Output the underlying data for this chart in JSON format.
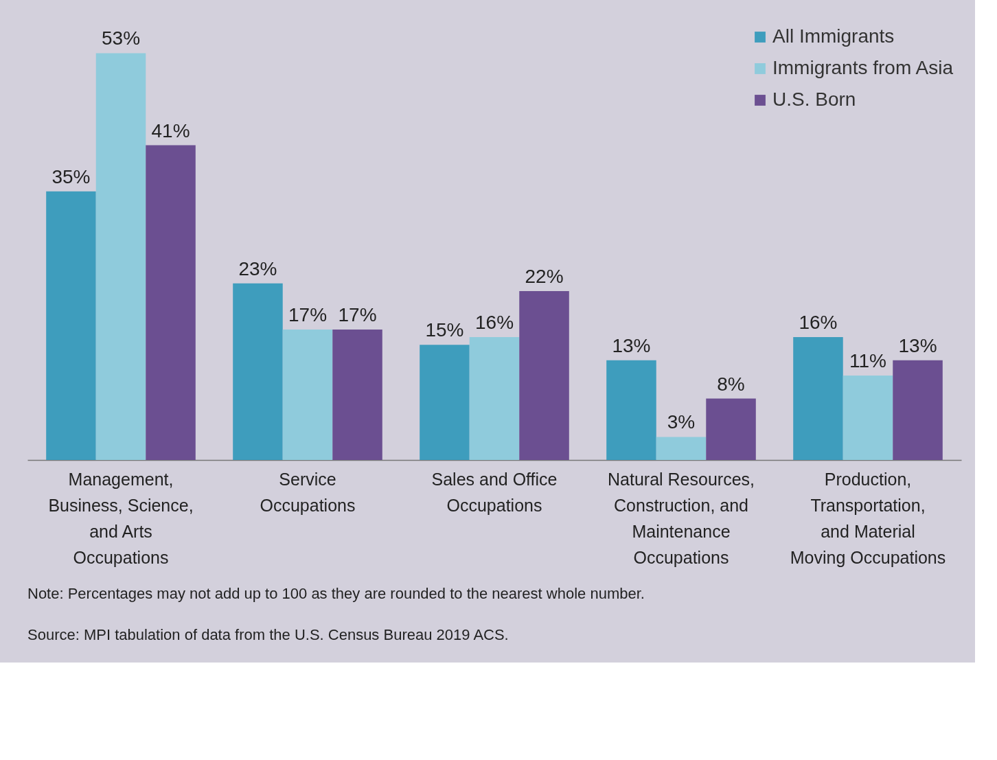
{
  "chart_data": {
    "type": "bar",
    "categories": [
      "Management, Business, Science, and Arts Occupations",
      "Service Occupations",
      "Sales and Office Occupations",
      "Natural Resources, Construction, and Maintenance Occupations",
      "Production, Transportation, and Material Moving Occupations"
    ],
    "series": [
      {
        "name": "All Immigrants",
        "color": "#3e9dbd",
        "values": [
          35,
          23,
          15,
          13,
          16
        ],
        "value_labels": [
          "35%",
          "23%",
          "15%",
          "13%",
          "16%"
        ]
      },
      {
        "name": "Immigrants from Asia",
        "color": "#8fcbdc",
        "values": [
          53,
          17,
          16,
          3,
          11
        ],
        "value_labels": [
          "53%",
          "17%",
          "16%",
          "3%",
          "11%"
        ]
      },
      {
        "name": "U.S. Born",
        "color": "#6b4f91",
        "values": [
          41,
          17,
          22,
          8,
          13
        ],
        "value_labels": [
          "41%",
          "17%",
          "22%",
          "8%",
          "13%"
        ]
      }
    ],
    "legend": "top right",
    "annotations": [
      "Note: Percentages may not add up to 100 as they are rounded to the nearest whole number.",
      "Source: MPI tabulation of data from the U.S. Census Bureau 2019 ACS."
    ]
  }
}
